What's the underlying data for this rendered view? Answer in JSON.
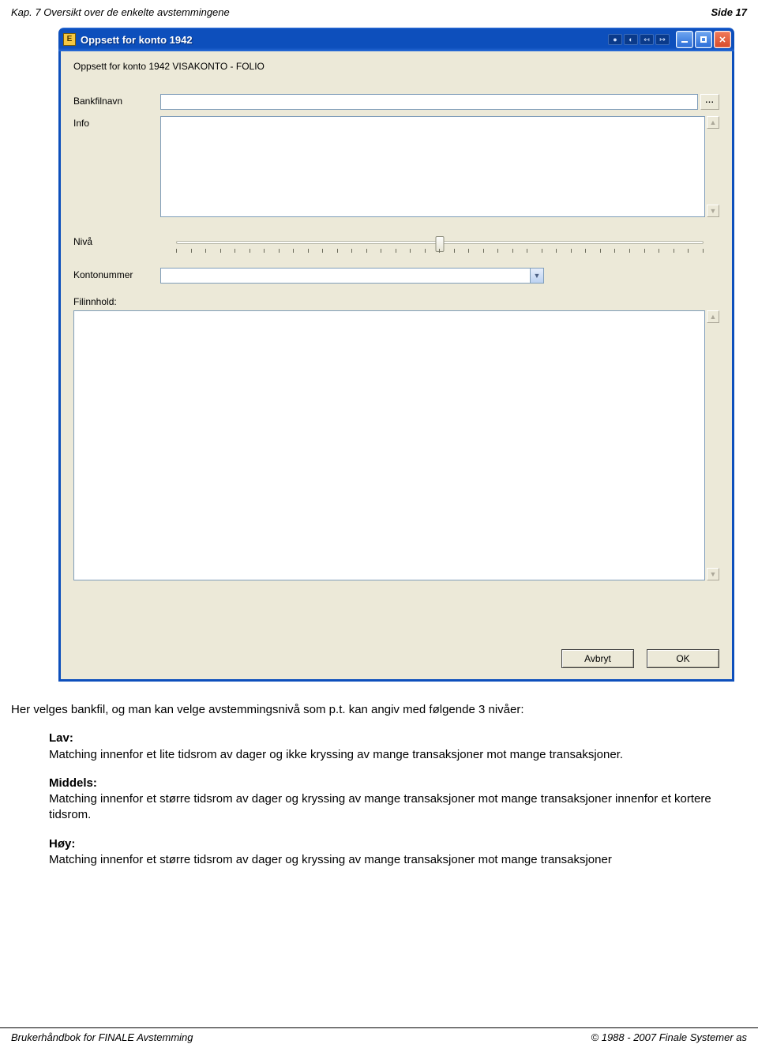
{
  "page": {
    "header_left": "Kap. 7 Oversikt over de enkelte avstemmingene",
    "header_right": "Side 17",
    "footer_left": "Brukerhåndbok for FINALE Avstemming",
    "footer_right": "© 1988 - 2007 Finale Systemer as"
  },
  "window": {
    "title": "Oppsett for konto 1942",
    "form_title": "Oppsett for konto 1942 VISAKONTO - FOLIO",
    "labels": {
      "bankfilnavn": "Bankfilnavn",
      "info": "Info",
      "nivaa": "Nivå",
      "kontonummer": "Kontonummer",
      "filinnhold": "Filinnhold:"
    },
    "inputs": {
      "bankfilnavn_value": "",
      "info_value": "",
      "kontonummer_value": "",
      "filinnhold_value": ""
    },
    "browse_label": "...",
    "slider": {
      "min": 0,
      "max": 36,
      "value": 18,
      "tick_count": 37
    },
    "buttons": {
      "avbryt": "Avbryt",
      "ok": "OK"
    },
    "colors": {
      "titlebar_bg": "#0d4fbc",
      "body_bg": "#ece9d8",
      "input_border": "#7f9db9"
    }
  },
  "text": {
    "intro": "Her velges bankfil, og man kan velge avstemmingsnivå som p.t. kan angiv med følgende 3 nivåer:",
    "levels": {
      "lav_label": "Lav:",
      "lav_text": "Matching innenfor et lite tidsrom av dager og ikke kryssing av mange transaksjoner mot mange transaksjoner.",
      "middels_label": "Middels:",
      "middels_text": "Matching innenfor et større tidsrom av dager og kryssing av mange transaksjoner mot mange transaksjoner innenfor et kortere tidsrom.",
      "hoy_label": "Høy:",
      "hoy_text": "Matching innenfor et større tidsrom av dager og kryssing av mange transaksjoner mot mange transaksjoner"
    }
  }
}
